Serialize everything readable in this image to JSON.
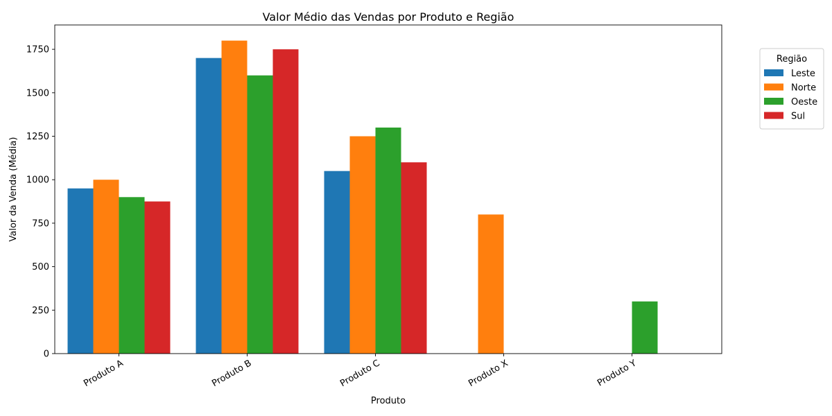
{
  "chart_data": {
    "type": "bar",
    "title": "Valor Médio das Vendas por Produto e Região",
    "xlabel": "Produto",
    "ylabel": "Valor da Venda (Média)",
    "categories": [
      "Produto A",
      "Produto B",
      "Produto C",
      "Produto X",
      "Produto Y"
    ],
    "series": [
      {
        "name": "Leste",
        "color": "#1f77b4",
        "values": [
          950,
          1700,
          1050,
          null,
          null
        ]
      },
      {
        "name": "Norte",
        "color": "#ff7f0e",
        "values": [
          1000,
          1800,
          1250,
          800,
          null
        ]
      },
      {
        "name": "Oeste",
        "color": "#2ca02c",
        "values": [
          900,
          1600,
          1300,
          null,
          300
        ]
      },
      {
        "name": "Sul",
        "color": "#d62728",
        "values": [
          875,
          1750,
          1100,
          null,
          null
        ]
      }
    ],
    "ylim": [
      0,
      1890
    ],
    "yticks": [
      0,
      250,
      500,
      750,
      1000,
      1250,
      1500,
      1750
    ],
    "xtick_rotation": 30,
    "legend": {
      "title": "Região",
      "placement": "outside-top-right"
    },
    "grid": false
  }
}
